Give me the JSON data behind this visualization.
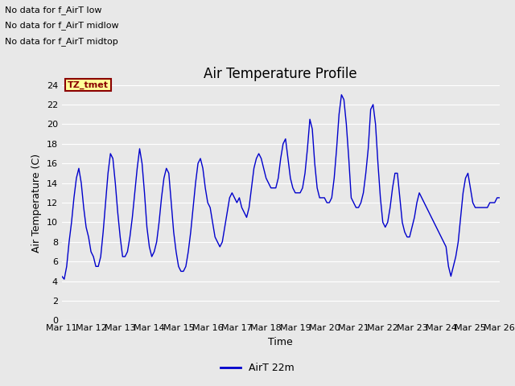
{
  "title": "Air Temperature Profile",
  "xlabel": "Time",
  "ylabel": "Air Temperature (C)",
  "legend_label": "AirT 22m",
  "annotations": [
    "No data for f_AirT low",
    "No data for f_AirT midlow",
    "No data for f_AirT midtop"
  ],
  "tz_label": "TZ_tmet",
  "ylim": [
    0,
    24
  ],
  "yticks": [
    0,
    2,
    4,
    6,
    8,
    10,
    12,
    14,
    16,
    18,
    20,
    22,
    24
  ],
  "line_color": "#0000cc",
  "background_color": "#e8e8e8",
  "plot_bg_color": "#e8e8e8",
  "x_labels": [
    "Mar 11",
    "Mar 12",
    "Mar 13",
    "Mar 14",
    "Mar 15",
    "Mar 16",
    "Mar 17",
    "Mar 18",
    "Mar 19",
    "Mar 20",
    "Mar 21",
    "Mar 22",
    "Mar 23",
    "Mar 24",
    "Mar 25",
    "Mar 26"
  ],
  "x_values": [
    0,
    24,
    48,
    72,
    96,
    120,
    144,
    168,
    192,
    216,
    240,
    264,
    288,
    312,
    336,
    360
  ],
  "time_hours": [
    0,
    2,
    4,
    6,
    8,
    10,
    12,
    14,
    16,
    18,
    20,
    22,
    24,
    26,
    28,
    30,
    32,
    34,
    36,
    38,
    40,
    42,
    44,
    46,
    48,
    50,
    52,
    54,
    56,
    58,
    60,
    62,
    64,
    66,
    68,
    70,
    72,
    74,
    76,
    78,
    80,
    82,
    84,
    86,
    88,
    90,
    92,
    94,
    96,
    98,
    100,
    102,
    104,
    106,
    108,
    110,
    112,
    114,
    116,
    118,
    120,
    122,
    124,
    126,
    128,
    130,
    132,
    134,
    136,
    138,
    140,
    142,
    144,
    146,
    148,
    150,
    152,
    154,
    156,
    158,
    160,
    162,
    164,
    166,
    168,
    170,
    172,
    174,
    176,
    178,
    180,
    182,
    184,
    186,
    188,
    190,
    192,
    194,
    196,
    198,
    200,
    202,
    204,
    206,
    208,
    210,
    212,
    214,
    216,
    218,
    220,
    222,
    224,
    226,
    228,
    230,
    232,
    234,
    236,
    238,
    240,
    242,
    244,
    246,
    248,
    250,
    252,
    254,
    256,
    258,
    260,
    262,
    264,
    266,
    268,
    270,
    272,
    274,
    276,
    278,
    280,
    282,
    284,
    286,
    288,
    290,
    292,
    294,
    296,
    298,
    300,
    302,
    304,
    306,
    308,
    310,
    312,
    314,
    316,
    318,
    320,
    322,
    324,
    326,
    328,
    330,
    332,
    334,
    336,
    338,
    340,
    342,
    344,
    346,
    348,
    350,
    352,
    354,
    356,
    358,
    360
  ],
  "temp_values": [
    4.5,
    4.2,
    5.5,
    8.0,
    10.0,
    12.5,
    14.5,
    15.5,
    14.0,
    11.5,
    9.5,
    8.5,
    7.0,
    6.5,
    5.5,
    5.5,
    6.5,
    9.0,
    12.0,
    15.0,
    17.0,
    16.5,
    14.0,
    11.0,
    8.5,
    6.5,
    6.5,
    7.0,
    8.5,
    10.5,
    13.0,
    15.5,
    17.5,
    16.0,
    13.0,
    9.5,
    7.5,
    6.5,
    7.0,
    8.0,
    10.0,
    12.5,
    14.5,
    15.5,
    15.0,
    12.0,
    9.0,
    7.0,
    5.5,
    5.0,
    5.0,
    5.5,
    7.0,
    9.0,
    11.5,
    14.0,
    16.0,
    16.5,
    15.5,
    13.5,
    12.0,
    11.5,
    10.0,
    8.5,
    8.0,
    7.5,
    8.0,
    9.5,
    11.0,
    12.5,
    13.0,
    12.5,
    12.0,
    12.5,
    11.5,
    11.0,
    10.5,
    11.5,
    13.5,
    15.5,
    16.5,
    17.0,
    16.5,
    15.5,
    14.5,
    14.0,
    13.5,
    13.5,
    13.5,
    14.5,
    16.5,
    18.0,
    18.5,
    16.5,
    14.5,
    13.5,
    13.0,
    13.0,
    13.0,
    13.5,
    15.0,
    17.5,
    20.5,
    19.5,
    16.0,
    13.5,
    12.5,
    12.5,
    12.5,
    12.0,
    12.0,
    12.5,
    14.5,
    17.5,
    21.0,
    23.0,
    22.5,
    20.0,
    16.5,
    12.5,
    12.0,
    11.5,
    11.5,
    12.0,
    13.0,
    15.0,
    17.5,
    21.5,
    22.0,
    20.0,
    16.0,
    12.5,
    10.0,
    9.5,
    10.0,
    11.5,
    13.5,
    15.0,
    15.0,
    12.5,
    10.0,
    9.0,
    8.5,
    8.5,
    9.5,
    10.5,
    12.0,
    13.0,
    12.5,
    12.0,
    11.5,
    11.0,
    10.5,
    10.0,
    9.5,
    9.0,
    8.5,
    8.0,
    7.5,
    5.5,
    4.5,
    5.5,
    6.5,
    8.0,
    10.5,
    13.0,
    14.5,
    15.0,
    13.5,
    12.0,
    11.5,
    11.5,
    11.5,
    11.5,
    11.5,
    11.5,
    12.0,
    12.0,
    12.0,
    12.5,
    12.5
  ]
}
